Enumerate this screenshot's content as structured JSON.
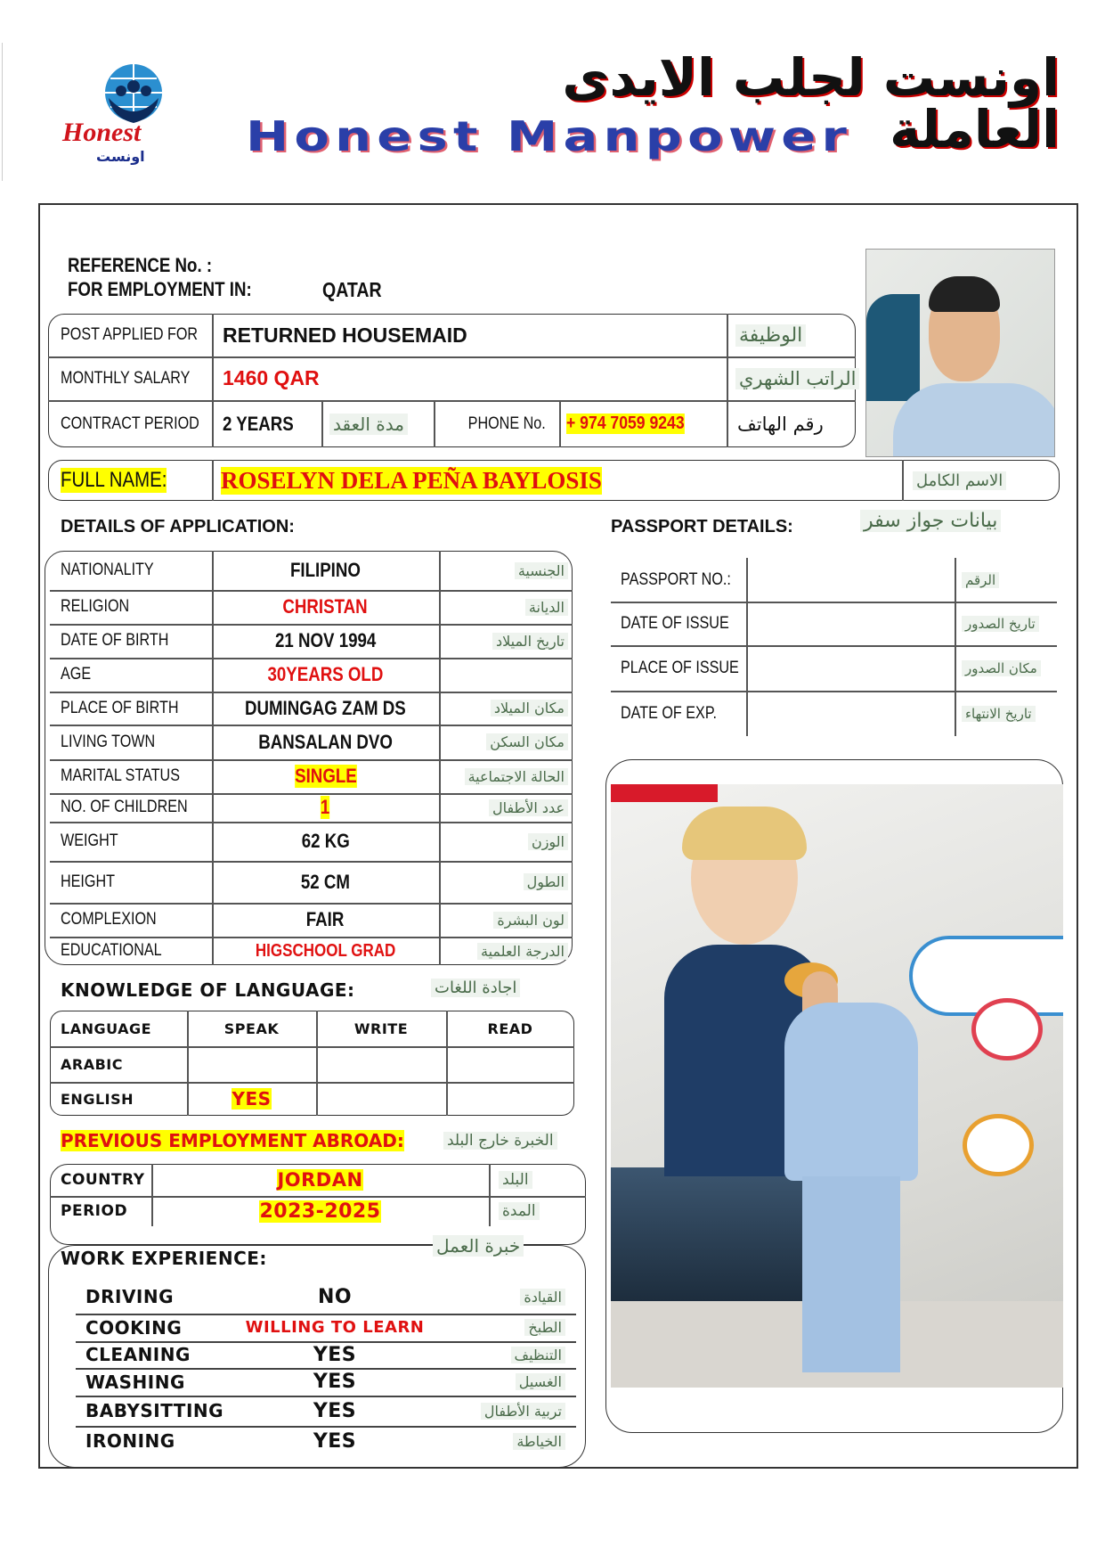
{
  "header": {
    "arabic_title": "اونست لجلب الايدى العاملة",
    "title": "Honest Manpower",
    "logo_text": "Honest",
    "logo_arabic": "اونست"
  },
  "reference": {
    "label": "REFERENCE No. :",
    "value": ""
  },
  "employment": {
    "label": "FOR EMPLOYMENT IN:",
    "value": "QATAR"
  },
  "post": {
    "label": "POST APPLIED FOR",
    "value": "RETURNED HOUSEMAID",
    "arabic": "الوظيفة"
  },
  "salary": {
    "label": "MONTHLY SALARY",
    "value": "1460 QAR",
    "arabic": "الراتب الشهري"
  },
  "contract": {
    "label": "CONTRACT PERIOD",
    "value": "2 YEARS",
    "arabic": "مدة العقد",
    "phone_label": "PHONE No.",
    "phone": "+ 974 7059 9243",
    "phone_arabic": "رقم الهاتف"
  },
  "full_name": {
    "label": "FULL NAME:",
    "value": "ROSELYN DELA PEÑA BAYLOSIS",
    "arabic": "الاسم الكامل"
  },
  "details": {
    "title": "DETAILS OF APPLICATION:",
    "rows": [
      {
        "label": "NATIONALITY",
        "value": "FILIPINO",
        "arabic": "الجنسية"
      },
      {
        "label": "RELIGION",
        "value": "CHRISTAN",
        "arabic": "الديانة"
      },
      {
        "label": "DATE OF BIRTH",
        "value": "21 NOV 1994",
        "arabic": "تاريخ الميلاد"
      },
      {
        "label": "AGE",
        "value": "30YEARS OLD",
        "arabic": ""
      },
      {
        "label": "PLACE OF BIRTH",
        "value": "DUMINGAG ZAM DS",
        "arabic": "مكان الميلاد"
      },
      {
        "label": "LIVING TOWN",
        "value": "BANSALAN DVO",
        "arabic": "مكان السكن"
      },
      {
        "label": "MARITAL STATUS",
        "value": "SINGLE",
        "arabic": "الحالة الاجتماعية"
      },
      {
        "label": "NO. OF CHILDREN",
        "value": "1",
        "arabic": "عدد الأطفال"
      },
      {
        "label": "WEIGHT",
        "value": "62 KG",
        "arabic": "الوزن"
      },
      {
        "label": "HEIGHT",
        "value": "52 CM",
        "arabic": "الطول"
      },
      {
        "label": "COMPLEXION",
        "value": "FAIR",
        "arabic": "لون البشرة"
      },
      {
        "label": "EDUCATIONAL",
        "value": "HIGSCHOOL GRAD",
        "arabic": "الدرجة العلمية"
      }
    ]
  },
  "passport": {
    "title": "PASSPORT DETAILS:",
    "arabic": "بيانات جواز سفر",
    "rows": [
      {
        "label": "PASSPORT NO.:",
        "value": "",
        "arabic": "الرقم"
      },
      {
        "label": "DATE OF ISSUE",
        "value": "",
        "arabic": "تاريخ الصدور"
      },
      {
        "label": "PLACE OF ISSUE",
        "value": "",
        "arabic": "مكان الصدور"
      },
      {
        "label": "DATE OF EXP.",
        "value": "",
        "arabic": "تاريخ الانتهاء"
      }
    ]
  },
  "language": {
    "title": "KNOWLEDGE OF LANGUAGE:",
    "arabic": "اجادة اللغات",
    "headers": [
      "LANGUAGE",
      "SPEAK",
      "WRITE",
      "READ"
    ],
    "rows": [
      [
        "ARABIC",
        "",
        "",
        ""
      ],
      [
        "ENGLISH",
        "YES",
        "",
        ""
      ]
    ]
  },
  "previous": {
    "title": "PREVIOUS EMPLOYMENT ABROAD:",
    "arabic": "الخبرة خارج البلد",
    "country": {
      "label": "COUNTRY",
      "value": "JORDAN",
      "arabic": "البلد"
    },
    "period": {
      "label": "PERIOD",
      "value": "2023-2025",
      "arabic": "المدة"
    }
  },
  "work": {
    "title": "WORK EXPERIENCE:",
    "arabic": "خبرة العمل",
    "rows": [
      {
        "label": "DRIVING",
        "value": "NO",
        "arabic": "القيادة"
      },
      {
        "label": "COOKING",
        "value": "WILLING TO LEARN",
        "arabic": "الطبخ"
      },
      {
        "label": "CLEANING",
        "value": "YES",
        "arabic": "التنظيف"
      },
      {
        "label": "WASHING",
        "value": "YES",
        "arabic": "الغسيل"
      },
      {
        "label": "BABYSITTING",
        "value": "YES",
        "arabic": "تربية الأطفال"
      },
      {
        "label": "IRONING",
        "value": "YES",
        "arabic": "الخياطة"
      }
    ]
  },
  "colors": {
    "red": "#e01010",
    "highlight": "#ffff00",
    "brand_blue": "#2a3fa8"
  }
}
